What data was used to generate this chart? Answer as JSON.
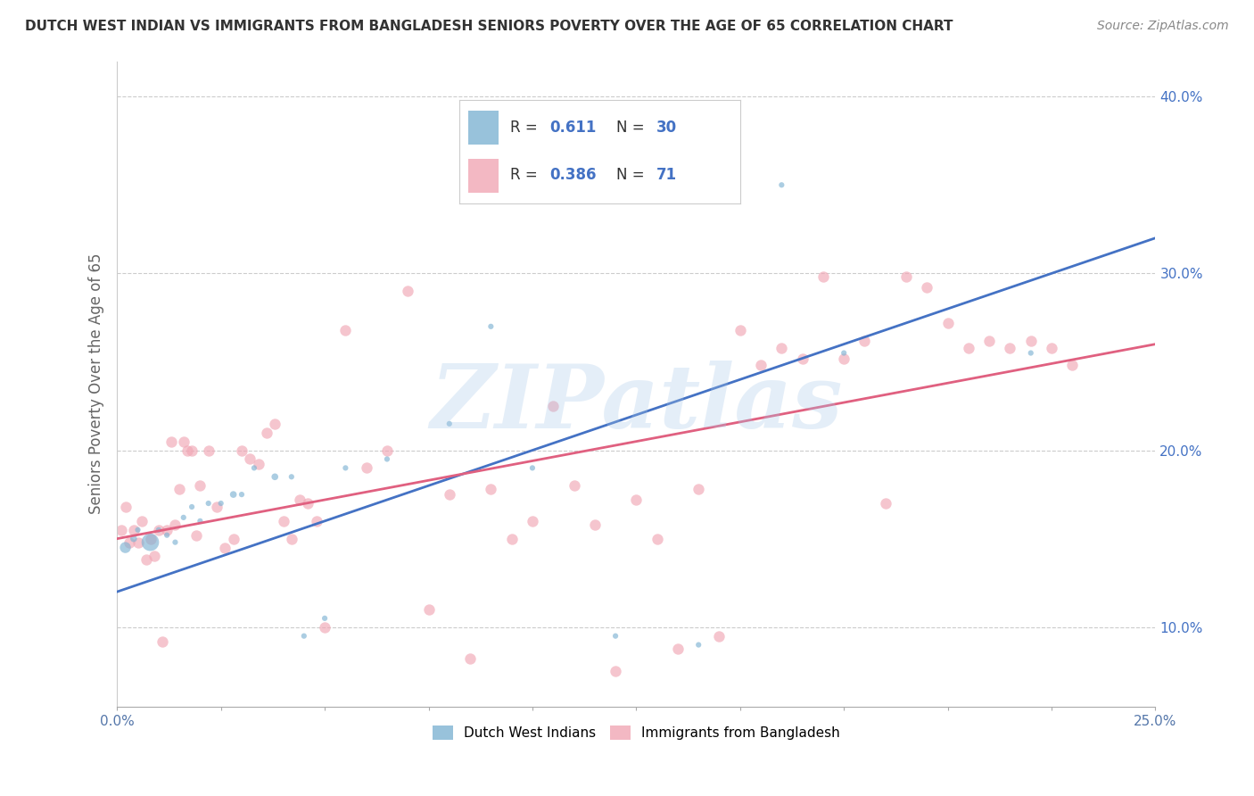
{
  "title": "DUTCH WEST INDIAN VS IMMIGRANTS FROM BANGLADESH SENIORS POVERTY OVER THE AGE OF 65 CORRELATION CHART",
  "source": "Source: ZipAtlas.com",
  "ylabel": "Seniors Poverty Over the Age of 65",
  "xlim": [
    0.0,
    0.25
  ],
  "ylim": [
    0.055,
    0.42
  ],
  "xticks": [
    0.0,
    0.025,
    0.05,
    0.075,
    0.1,
    0.125,
    0.15,
    0.175,
    0.2,
    0.225,
    0.25
  ],
  "yticks": [
    0.1,
    0.2,
    0.3,
    0.4
  ],
  "ytick_labels": [
    "10.0%",
    "20.0%",
    "30.0%",
    "40.0%"
  ],
  "xtick_edge_labels": [
    "0.0%",
    "25.0%"
  ],
  "color_blue": "#7FB3D3",
  "color_pink": "#F1A7B5",
  "color_blue_line": "#4472C4",
  "color_pink_line": "#E06080",
  "blue_scatter_x": [
    0.002,
    0.004,
    0.005,
    0.008,
    0.01,
    0.012,
    0.014,
    0.016,
    0.018,
    0.02,
    0.022,
    0.025,
    0.028,
    0.03,
    0.033,
    0.038,
    0.042,
    0.045,
    0.05,
    0.055,
    0.065,
    0.08,
    0.09,
    0.1,
    0.12,
    0.14,
    0.16,
    0.175,
    0.22
  ],
  "blue_scatter_y": [
    0.145,
    0.15,
    0.155,
    0.148,
    0.155,
    0.152,
    0.148,
    0.162,
    0.168,
    0.16,
    0.17,
    0.17,
    0.175,
    0.175,
    0.19,
    0.185,
    0.185,
    0.095,
    0.105,
    0.19,
    0.195,
    0.215,
    0.27,
    0.19,
    0.095,
    0.09,
    0.35,
    0.255,
    0.255
  ],
  "blue_scatter_size": [
    80,
    30,
    20,
    200,
    20,
    20,
    20,
    20,
    20,
    20,
    20,
    20,
    30,
    20,
    20,
    30,
    20,
    20,
    20,
    20,
    20,
    20,
    20,
    20,
    20,
    20,
    20,
    20,
    20
  ],
  "pink_scatter_x": [
    0.001,
    0.002,
    0.003,
    0.004,
    0.005,
    0.006,
    0.007,
    0.008,
    0.009,
    0.01,
    0.011,
    0.012,
    0.013,
    0.014,
    0.015,
    0.016,
    0.017,
    0.018,
    0.019,
    0.02,
    0.022,
    0.024,
    0.026,
    0.028,
    0.03,
    0.032,
    0.034,
    0.036,
    0.038,
    0.04,
    0.042,
    0.044,
    0.046,
    0.048,
    0.05,
    0.055,
    0.06,
    0.065,
    0.07,
    0.075,
    0.08,
    0.085,
    0.09,
    0.095,
    0.1,
    0.105,
    0.11,
    0.115,
    0.12,
    0.125,
    0.13,
    0.135,
    0.14,
    0.145,
    0.15,
    0.155,
    0.16,
    0.165,
    0.17,
    0.175,
    0.18,
    0.185,
    0.19,
    0.195,
    0.2,
    0.205,
    0.21,
    0.215,
    0.22,
    0.225,
    0.23
  ],
  "pink_scatter_y": [
    0.155,
    0.168,
    0.148,
    0.155,
    0.148,
    0.16,
    0.138,
    0.15,
    0.14,
    0.155,
    0.092,
    0.155,
    0.205,
    0.158,
    0.178,
    0.205,
    0.2,
    0.2,
    0.152,
    0.18,
    0.2,
    0.168,
    0.145,
    0.15,
    0.2,
    0.195,
    0.192,
    0.21,
    0.215,
    0.16,
    0.15,
    0.172,
    0.17,
    0.16,
    0.1,
    0.268,
    0.19,
    0.2,
    0.29,
    0.11,
    0.175,
    0.082,
    0.178,
    0.15,
    0.16,
    0.225,
    0.18,
    0.158,
    0.075,
    0.172,
    0.15,
    0.088,
    0.178,
    0.095,
    0.268,
    0.248,
    0.258,
    0.252,
    0.298,
    0.252,
    0.262,
    0.17,
    0.298,
    0.292,
    0.272,
    0.258,
    0.262,
    0.258,
    0.262,
    0.258,
    0.248
  ],
  "watermark_text": "ZIPatlas",
  "blue_line_x": [
    0.0,
    0.25
  ],
  "blue_line_y": [
    0.12,
    0.32
  ],
  "pink_line_x": [
    0.0,
    0.25
  ],
  "pink_line_y": [
    0.15,
    0.26
  ],
  "background_color": "#FFFFFF",
  "grid_color": "#CCCCCC",
  "title_color": "#333333"
}
